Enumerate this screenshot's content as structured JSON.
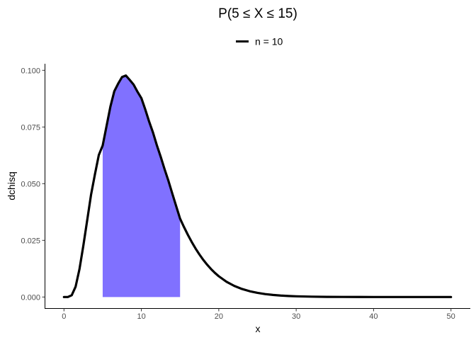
{
  "chart_data": {
    "type": "line",
    "title": "P(5 ≤ X ≤ 15)",
    "xlabel": "x",
    "ylabel": "dchisq",
    "xlim": [
      -2.5,
      52.5
    ],
    "ylim": [
      -0.0049,
      0.1029
    ],
    "x_ticks": [
      0,
      10,
      20,
      30,
      40,
      50
    ],
    "x_tick_labels": [
      "0",
      "10",
      "20",
      "30",
      "40",
      "50"
    ],
    "y_ticks": [
      0,
      0.025,
      0.05,
      0.075,
      0.1
    ],
    "y_tick_labels": [
      "0.000",
      "0.025",
      "0.050",
      "0.075",
      "0.100"
    ],
    "grid": false,
    "legend": {
      "position": "top",
      "entries": [
        "n = 10"
      ]
    },
    "series": [
      {
        "name": "n = 10",
        "color": "#000000",
        "degrees_of_freedom": 10,
        "x": [
          0,
          0.5,
          1,
          1.5,
          2,
          2.5,
          3,
          3.5,
          4,
          4.5,
          5,
          5.5,
          6,
          6.5,
          7,
          7.5,
          8,
          8.5,
          9,
          9.5,
          10,
          10.5,
          11,
          11.5,
          12,
          12.5,
          13,
          13.5,
          14,
          14.5,
          15,
          15.5,
          16,
          16.5,
          17,
          17.5,
          18,
          18.5,
          19,
          19.5,
          20,
          21,
          22,
          23,
          24,
          25,
          26,
          27,
          28,
          29,
          30,
          32,
          34,
          36,
          38,
          40,
          42,
          44,
          46,
          48,
          50
        ],
        "y": [
          0,
          1e-05,
          0.00079,
          0.00454,
          0.01226,
          0.02262,
          0.03385,
          0.04516,
          0.05413,
          0.06262,
          0.0668,
          0.07541,
          0.08402,
          0.09076,
          0.09412,
          0.09703,
          0.0977,
          0.09575,
          0.09369,
          0.09053,
          0.08773,
          0.08278,
          0.07741,
          0.07258,
          0.06692,
          0.06183,
          0.05636,
          0.05121,
          0.04559,
          0.04005,
          0.03456,
          0.03091,
          0.02748,
          0.02431,
          0.0214,
          0.01877,
          0.01638,
          0.01424,
          0.01233,
          0.01064,
          0.00916,
          0.00673,
          0.00491,
          0.00355,
          0.00256,
          0.00183,
          0.0013,
          0.00092,
          0.00065,
          0.00046,
          0.00032,
          0.00016,
          7e-05,
          4e-05,
          2e-05,
          1e-05,
          0,
          0,
          0,
          0,
          0
        ]
      }
    ],
    "shaded_region": {
      "x_from": 5,
      "x_to": 15,
      "color": "#8071ff"
    }
  }
}
